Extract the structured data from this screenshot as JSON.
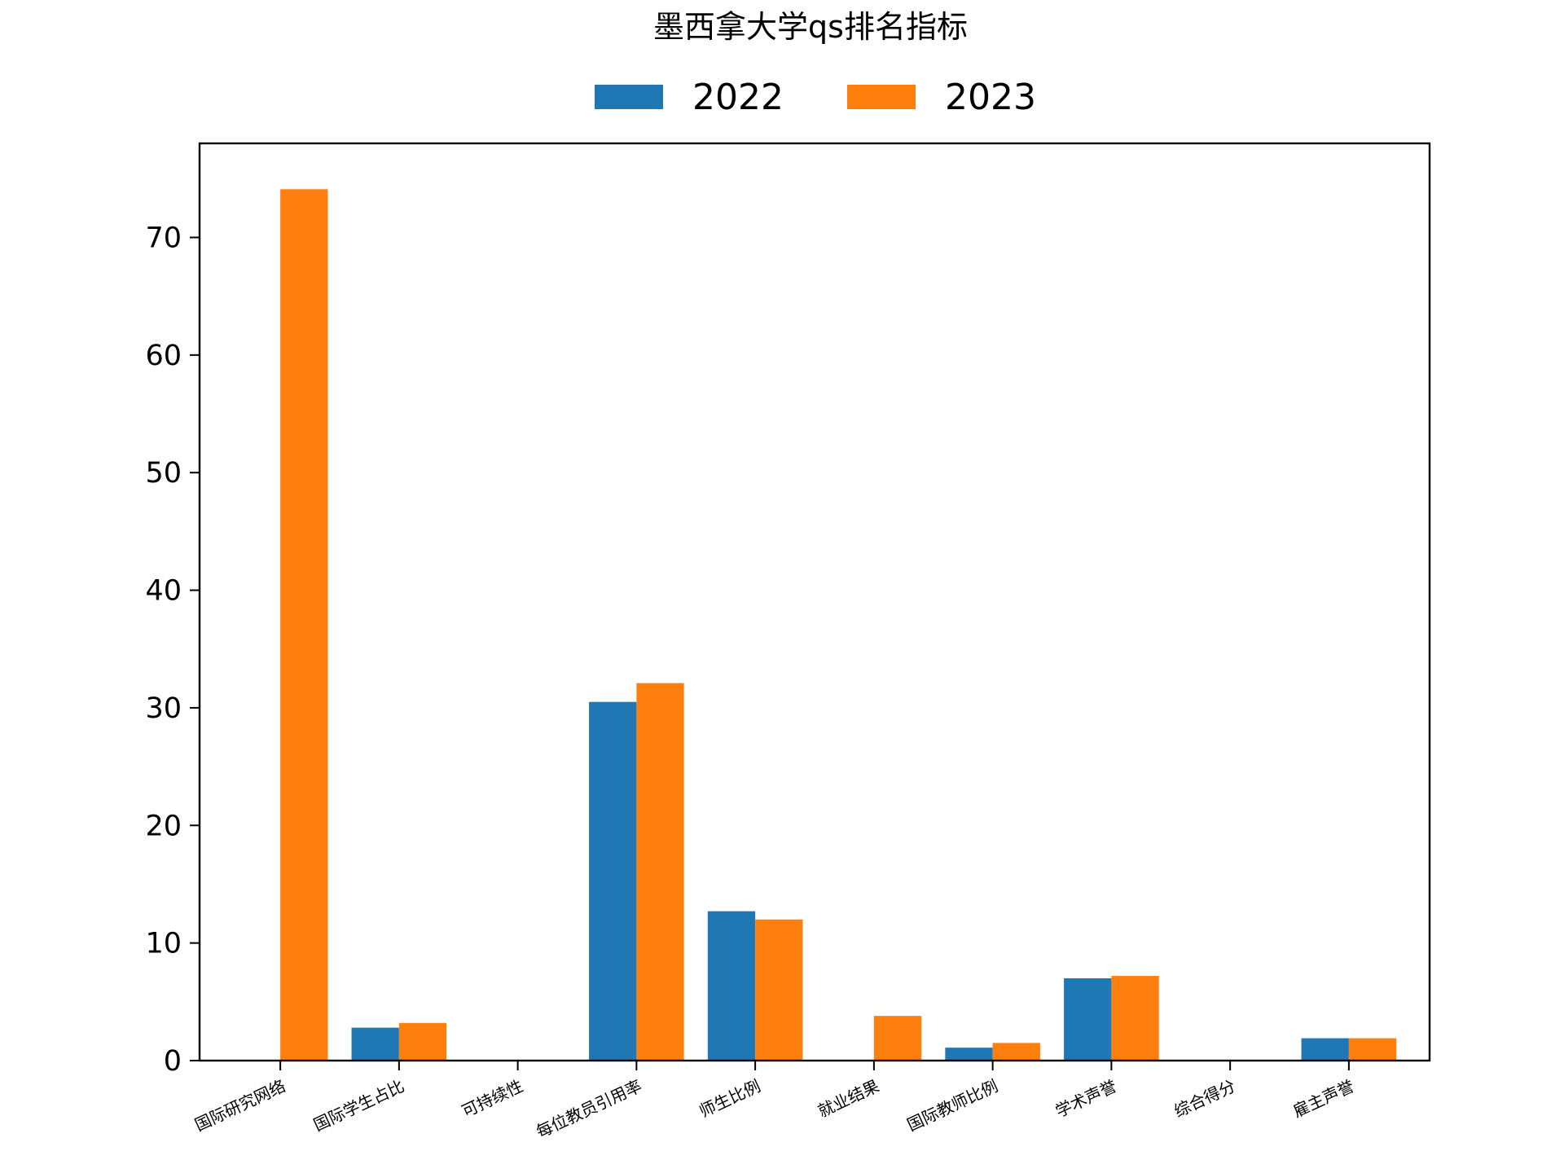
{
  "chart_data": {
    "type": "bar",
    "title": "墨西拿大学qs排名指标",
    "xlabel": "",
    "ylabel": "",
    "categories": [
      "国际研究网络",
      "国际学生占比",
      "可持续性",
      "每位教员引用率",
      "师生比例",
      "就业结果",
      "国际教师比例",
      "学术声誉",
      "综合得分",
      "雇主声誉"
    ],
    "series": [
      {
        "name": "2022",
        "color": "#1f77b4",
        "values": [
          0,
          2.8,
          0,
          30.5,
          12.7,
          0,
          1.1,
          7.0,
          0,
          1.9
        ]
      },
      {
        "name": "2023",
        "color": "#ff7f0e",
        "values": [
          74.1,
          3.2,
          0,
          32.1,
          12.0,
          3.8,
          1.5,
          7.2,
          0,
          1.9
        ]
      }
    ],
    "ylim": [
      0,
      78
    ],
    "yticks": [
      0,
      10,
      20,
      30,
      40,
      50,
      60,
      70
    ],
    "legend_position": "top-center",
    "grid": false
  }
}
